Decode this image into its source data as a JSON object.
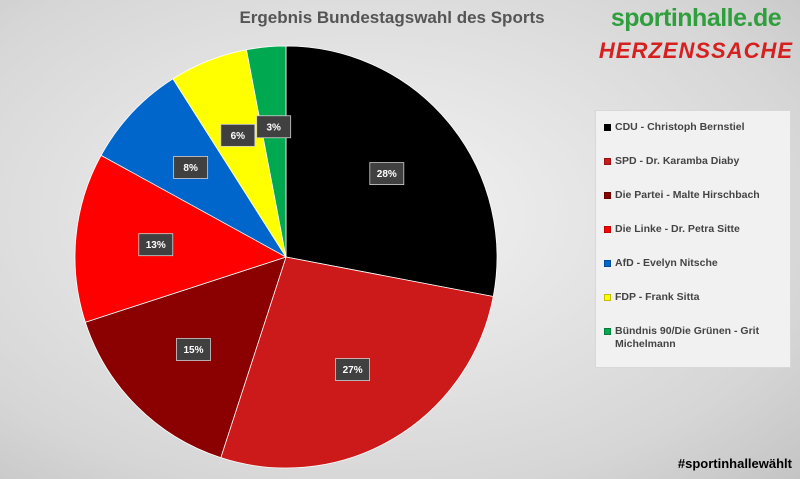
{
  "chart_data": {
    "type": "pie",
    "title": "Ergebnis Bundestagswahl des Sports",
    "legend_position": "right",
    "categories": [
      "CDU - Christoph Bernstiel",
      "SPD - Dr. Karamba Diaby",
      "Die Partei - Malte Hirschbach",
      "Die Linke - Dr. Petra Sitte",
      "AfD - Evelyn Nitsche",
      "FDP - Frank Sitta",
      "Bündnis 90/Die Grünen - Grit Michelmann"
    ],
    "values": [
      28,
      27,
      15,
      13,
      8,
      6,
      3
    ],
    "data_labels": [
      "28%",
      "27%",
      "15%",
      "13%",
      "8%",
      "6%",
      "3%"
    ],
    "colors": [
      "#000000",
      "#cc1a1a",
      "#8b0000",
      "#ff0000",
      "#0066cc",
      "#ffff00",
      "#00a94f"
    ]
  },
  "branding": {
    "site_name": "sportinhalle.de",
    "tagline": "HERZENSSACHE",
    "hashtag": "#sportinhallewählt"
  }
}
